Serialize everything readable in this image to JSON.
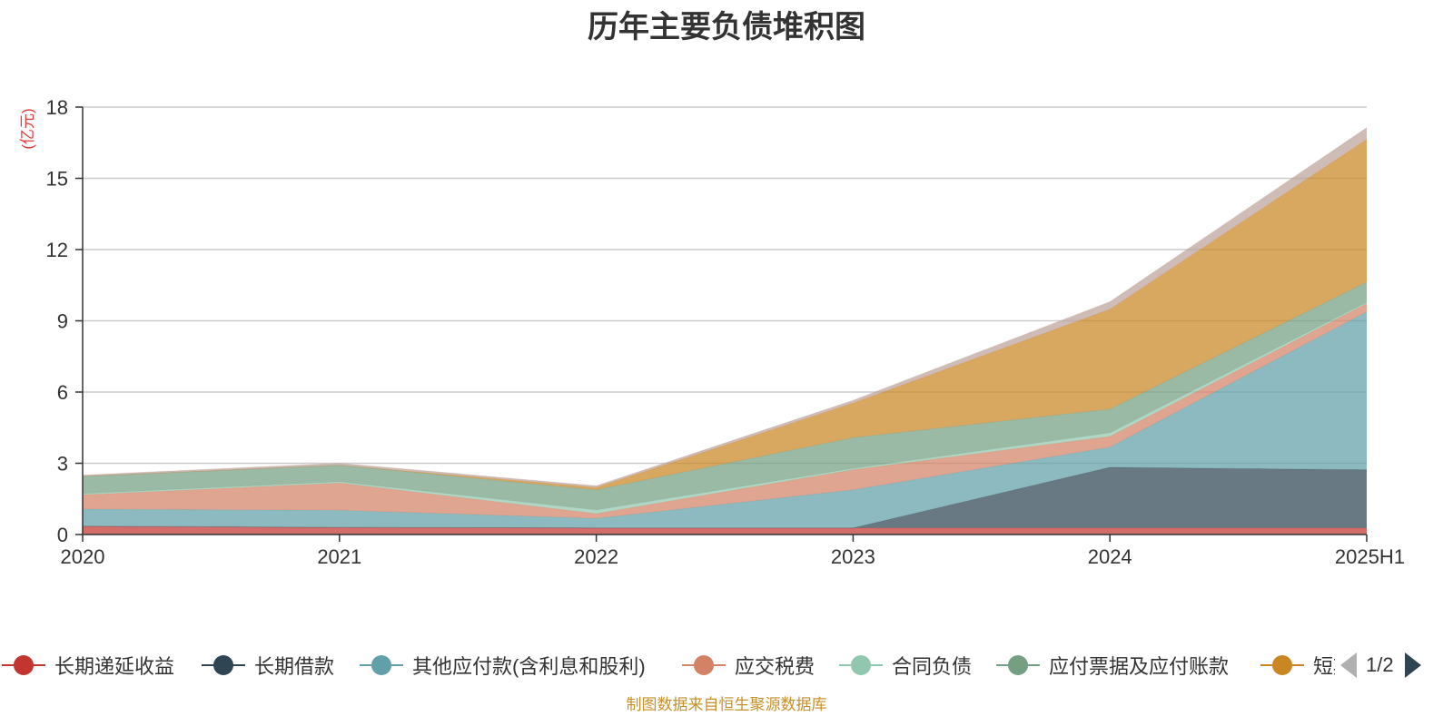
{
  "chart_data": {
    "type": "area",
    "title": "历年主要负债堆积图",
    "ylabel": "亿元",
    "xlabel": "",
    "stacked": true,
    "categories": [
      "2020",
      "2021",
      "2022",
      "2023",
      "2024",
      "2025H1"
    ],
    "ylim": [
      0,
      18
    ],
    "yticks": [
      0,
      3,
      6,
      9,
      12,
      15,
      18
    ],
    "grid": true,
    "legend_position": "bottom",
    "series": [
      {
        "name": "长期递延收益",
        "color": "#c23531",
        "values": [
          0.35,
          0.3,
          0.28,
          0.28,
          0.28,
          0.28
        ]
      },
      {
        "name": "长期借款",
        "color": "#2f4554",
        "values": [
          0,
          0,
          0,
          0,
          2.55,
          2.45
        ]
      },
      {
        "name": "其他应付款(含利息和股利)",
        "color": "#61a0a8",
        "values": [
          0.72,
          0.72,
          0.4,
          1.6,
          0.85,
          6.65
        ]
      },
      {
        "name": "应交税费",
        "color": "#d48265",
        "values": [
          0.6,
          1.15,
          0.2,
          0.85,
          0.45,
          0.35
        ]
      },
      {
        "name": "合同负债",
        "color": "#91c7ae",
        "values": [
          0.05,
          0.05,
          0.15,
          0.05,
          0.15,
          0.05
        ]
      },
      {
        "name": "应付票据及应付账款",
        "color": "#749f83",
        "values": [
          0.73,
          0.7,
          0.85,
          1.3,
          1.0,
          0.85
        ]
      },
      {
        "name": "短期借款",
        "color": "#ca8622",
        "values": [
          0,
          0,
          0.1,
          1.45,
          4.2,
          6.0
        ]
      },
      {
        "name": "",
        "color": "#bda29a",
        "values": [
          0.05,
          0.08,
          0.07,
          0.12,
          0.32,
          0.5
        ]
      }
    ]
  },
  "legend": {
    "page_indicator": "1/2"
  },
  "source_note": "制图数据来自恒生聚源数据库"
}
